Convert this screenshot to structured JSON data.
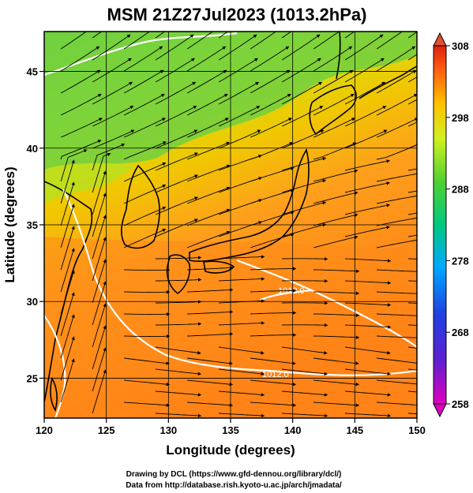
{
  "title": "MSM 21Z27Jul2023 (1013.2hPa)",
  "x_axis": {
    "label": "Longitude (degrees)",
    "ticks": [
      "120",
      "125",
      "130",
      "135",
      "140",
      "145",
      "150"
    ],
    "range": [
      120,
      150
    ]
  },
  "y_axis": {
    "label": "Latitude  (degrees)",
    "ticks": [
      "25",
      "30",
      "35",
      "40",
      "45"
    ],
    "range": [
      22.4,
      47.6
    ]
  },
  "colorbar": {
    "ticks": [
      "308",
      "298",
      "288",
      "278",
      "268",
      "258"
    ],
    "range": [
      258,
      308
    ],
    "colors": [
      "#e000c0",
      "#2020d0",
      "#00a0ff",
      "#00c870",
      "#40d030",
      "#c0f020",
      "#ffe000",
      "#ff9a20",
      "#ff5a10",
      "#e82010"
    ]
  },
  "contour_labels": [
    "1012.0",
    "1012.0"
  ],
  "credits": {
    "line1": "Drawing by DCL (https://www.gfd-dennou.org/library/dcl/)",
    "line2": "Data from http://database.rish.kyoto-u.ac.jp/arch/jmadata/"
  },
  "colors": {
    "land_warm": "#e8c000",
    "sea_warm": "#ff8a1a",
    "north_green": "#70d040",
    "coast": "#000000",
    "isobar": "#ffffff"
  }
}
